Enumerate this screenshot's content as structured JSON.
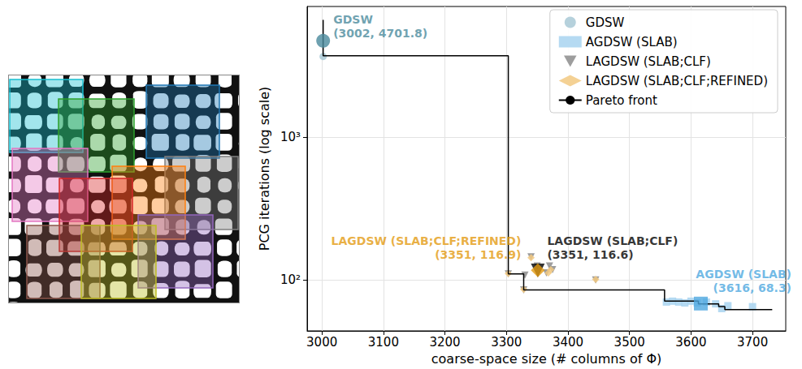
{
  "chart_data": {
    "type": "scatter",
    "x_label": "coarse-space size (# columns of Φ)",
    "y_label": "PCG iterations (log scale)",
    "xlim": [
      2976,
      3754
    ],
    "ylim": [
      44,
      8170
    ],
    "xticks": [
      3000,
      3100,
      3200,
      3300,
      3400,
      3500,
      3600,
      3700
    ],
    "yticks": [
      {
        "value": 100,
        "label": "10²"
      },
      {
        "value": 1000,
        "label": "10³"
      }
    ],
    "log": "y",
    "grid": true,
    "legend": "upper right",
    "series": [
      {
        "name": "GDSW",
        "color": "#a9c9d6",
        "marker": "circle",
        "x": [
          3002
        ],
        "y": [
          3650
        ],
        "highlight": {
          "x": 3002,
          "y": 4701.8,
          "label": "(3002, 4701.8)",
          "color": "#4a8a9c"
        }
      },
      {
        "name": "AGDSW (SLAB)",
        "color": "#a8d4f0",
        "marker": "square",
        "x": [
          3560,
          3570,
          3580,
          3590,
          3600,
          3610,
          3625,
          3640,
          3650,
          3660,
          3700
        ],
        "y": [
          70,
          71,
          70,
          69,
          71,
          69,
          70,
          68,
          63,
          66,
          65
        ],
        "highlight": {
          "x": 3616,
          "y": 68.3,
          "label": "(3616, 68.3)",
          "color": "#4ea8e0"
        }
      },
      {
        "name": "LAGDSW (SLAB;CLF)",
        "color": "#8c8c8c",
        "marker": "triangle-down",
        "x": [
          3303,
          3328,
          3330,
          3340,
          3350,
          3365,
          3370,
          3375,
          3445
        ],
        "y": [
          110,
          85,
          108,
          145,
          125,
          112,
          125,
          118,
          100
        ],
        "highlight": {
          "x": 3351,
          "y": 116.6,
          "label": "(3351, 116.6)",
          "color": "#000000"
        }
      },
      {
        "name": "LAGDSW (SLAB;CLF;REFINED)",
        "color": "#f2c981",
        "marker": "diamond",
        "x": [
          3303,
          3328,
          3340,
          3368,
          3372,
          3445
        ],
        "y": [
          111,
          86,
          143,
          112,
          118,
          101
        ],
        "highlight": {
          "x": 3351,
          "y": 116.9,
          "label": "(3351, 116.9)",
          "color": "#e39b12"
        }
      },
      {
        "name": "Pareto front",
        "type": "line",
        "line_style": "step",
        "color": "#000000",
        "x": [
          3002,
          3002,
          3303,
          3328,
          3557,
          3612,
          3645,
          3655,
          3732
        ],
        "y": [
          6580,
          3700,
          110,
          85,
          71,
          68,
          65,
          62,
          62
        ]
      }
    ]
  }
}
